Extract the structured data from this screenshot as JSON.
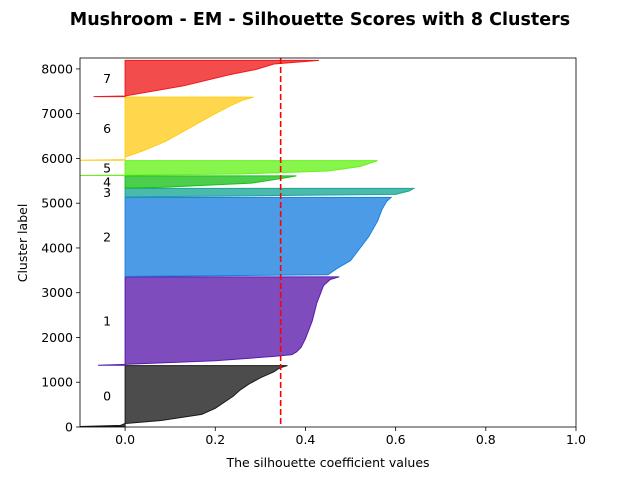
{
  "chart_data": {
    "type": "area",
    "title": "Mushroom - EM - Silhouette Scores with 8 Clusters",
    "xlabel": "The silhouette coefficient values",
    "ylabel": "Cluster label",
    "xlim": [
      -0.1,
      1.0
    ],
    "ylim": [
      0,
      8244
    ],
    "xticks": [
      "0.0",
      "0.2",
      "0.4",
      "0.6",
      "0.8",
      "1.0"
    ],
    "xtick_values": [
      0.0,
      0.2,
      0.4,
      0.6,
      0.8,
      1.0
    ],
    "yticks": [
      "0",
      "1000",
      "2000",
      "3000",
      "4000",
      "5000",
      "6000",
      "7000",
      "8000"
    ],
    "ytick_values": [
      0,
      1000,
      2000,
      3000,
      4000,
      5000,
      6000,
      7000,
      8000
    ],
    "average_silhouette": 0.345,
    "average_line_color": "#ff0000",
    "grid": false,
    "clusters": [
      {
        "label": "0",
        "color": "#1a1a1a",
        "y_lower": 10,
        "y_upper": 1370,
        "profile": [
          [
            0,
            -0.1
          ],
          [
            0.02,
            -0.01
          ],
          [
            0.05,
            0.0
          ],
          [
            0.1,
            0.08
          ],
          [
            0.2,
            0.17
          ],
          [
            0.3,
            0.2
          ],
          [
            0.4,
            0.22
          ],
          [
            0.5,
            0.24
          ],
          [
            0.6,
            0.255
          ],
          [
            0.7,
            0.275
          ],
          [
            0.8,
            0.3
          ],
          [
            0.9,
            0.33
          ],
          [
            0.95,
            0.34
          ],
          [
            0.98,
            0.35
          ],
          [
            1.0,
            0.36
          ]
        ]
      },
      {
        "label": "1",
        "color": "#5a1aab",
        "y_lower": 1380,
        "y_upper": 3355,
        "profile": [
          [
            0,
            -0.06
          ],
          [
            0.01,
            0.0
          ],
          [
            0.05,
            0.2
          ],
          [
            0.1,
            0.33
          ],
          [
            0.12,
            0.37
          ],
          [
            0.15,
            0.38
          ],
          [
            0.2,
            0.39
          ],
          [
            0.3,
            0.4
          ],
          [
            0.5,
            0.415
          ],
          [
            0.7,
            0.425
          ],
          [
            0.9,
            0.44
          ],
          [
            0.97,
            0.455
          ],
          [
            1.0,
            0.475
          ]
        ]
      },
      {
        "label": "2",
        "color": "#1a7fe0",
        "y_lower": 3365,
        "y_upper": 5130,
        "profile": [
          [
            0,
            0.0
          ],
          [
            0.02,
            0.45
          ],
          [
            0.1,
            0.47
          ],
          [
            0.2,
            0.5
          ],
          [
            0.35,
            0.52
          ],
          [
            0.5,
            0.54
          ],
          [
            0.7,
            0.56
          ],
          [
            0.85,
            0.57
          ],
          [
            0.95,
            0.58
          ],
          [
            1.0,
            0.59
          ]
        ]
      },
      {
        "label": "3",
        "color": "#1aa596",
        "y_lower": 5140,
        "y_upper": 5330,
        "profile": [
          [
            0,
            0.0
          ],
          [
            0.3,
            0.6
          ],
          [
            0.7,
            0.63
          ],
          [
            1.0,
            0.64
          ]
        ]
      },
      {
        "label": "4",
        "color": "#1abf1a",
        "y_lower": 5340,
        "y_upper": 5610,
        "profile": [
          [
            0,
            0.0
          ],
          [
            0.05,
            0.08
          ],
          [
            0.4,
            0.28
          ],
          [
            0.8,
            0.35
          ],
          [
            1.0,
            0.38
          ]
        ]
      },
      {
        "label": "5",
        "color": "#66f21a",
        "y_lower": 5620,
        "y_upper": 5950,
        "profile": [
          [
            0,
            -0.1
          ],
          [
            0.02,
            0.0
          ],
          [
            0.1,
            0.25
          ],
          [
            0.3,
            0.45
          ],
          [
            0.6,
            0.52
          ],
          [
            0.9,
            0.55
          ],
          [
            1.0,
            0.56
          ]
        ]
      },
      {
        "label": "6",
        "color": "#ffcc1a",
        "y_lower": 5960,
        "y_upper": 7370,
        "profile": [
          [
            0,
            -0.1
          ],
          [
            0.01,
            0.0
          ],
          [
            0.05,
            0.0
          ],
          [
            0.15,
            0.04
          ],
          [
            0.3,
            0.09
          ],
          [
            0.5,
            0.14
          ],
          [
            0.7,
            0.19
          ],
          [
            0.85,
            0.23
          ],
          [
            0.95,
            0.26
          ],
          [
            1.0,
            0.285
          ]
        ]
      },
      {
        "label": "7",
        "color": "#ee1a1a",
        "y_lower": 7380,
        "y_upper": 8190,
        "profile": [
          [
            0,
            -0.07
          ],
          [
            0.02,
            0.0
          ],
          [
            0.3,
            0.13
          ],
          [
            0.6,
            0.23
          ],
          [
            0.75,
            0.29
          ],
          [
            0.9,
            0.33
          ],
          [
            1.0,
            0.43
          ]
        ]
      }
    ]
  }
}
